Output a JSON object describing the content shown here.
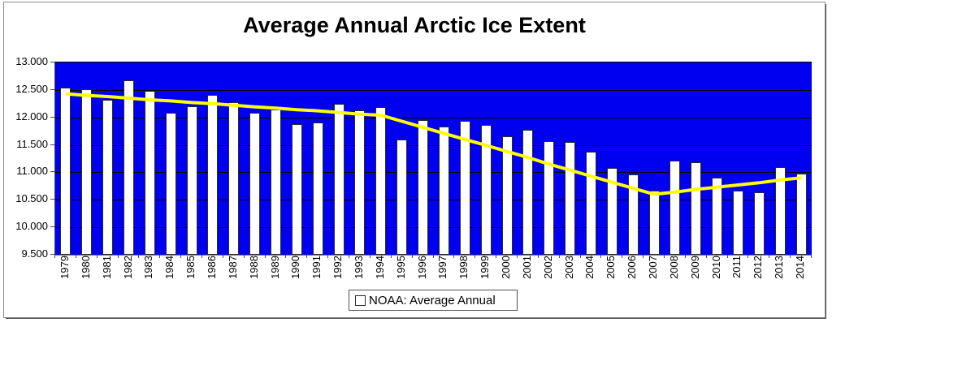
{
  "title": "Average Annual Arctic Ice Extent",
  "legend": {
    "marker_icon": "white-square-icon",
    "label": "NOAA: Average Annual"
  },
  "y_axis": {
    "tick_labels": [
      "13.000",
      "12.500",
      "12.000",
      "11.500",
      "11.000",
      "10.500",
      "10.000",
      "9.500"
    ],
    "min": 9.5,
    "max": 13.0,
    "step": 0.5
  },
  "colors": {
    "plot_background": "#0000F0",
    "bar_fill": "#FFFFFF",
    "bar_border": "#2B2B2B",
    "trend_line": "#FFFF00",
    "gridline": "#000000",
    "title_text": "#000000"
  },
  "chart_data": {
    "type": "bar",
    "title": "Average Annual Arctic Ice Extent",
    "xlabel": "",
    "ylabel": "",
    "ylim": [
      9.5,
      13.0
    ],
    "ytick_step": 0.5,
    "grid": true,
    "plot_bg": "#0000F0",
    "legend_position": "bottom",
    "categories": [
      "1979",
      "1980",
      "1981",
      "1982",
      "1983",
      "1984",
      "1985",
      "1986",
      "1987",
      "1988",
      "1989",
      "1990",
      "1991",
      "1992",
      "1993",
      "1994",
      "1995",
      "1996",
      "1997",
      "1998",
      "1999",
      "2000",
      "2001",
      "2002",
      "2003",
      "2004",
      "2005",
      "2006",
      "2007",
      "2008",
      "2009",
      "2010",
      "2011",
      "2012",
      "2013",
      "2014"
    ],
    "series": [
      {
        "name": "NOAA: Average Annual",
        "kind": "bar",
        "color": "#FFFFFF",
        "values": [
          12.54,
          12.51,
          12.32,
          12.67,
          12.49,
          12.09,
          12.2,
          12.41,
          12.28,
          12.08,
          12.14,
          11.88,
          11.91,
          12.24,
          12.13,
          12.19,
          11.59,
          11.95,
          11.83,
          11.94,
          11.87,
          11.65,
          11.78,
          11.57,
          11.55,
          11.37,
          11.08,
          10.96,
          10.66,
          11.22,
          11.18,
          10.91,
          10.66,
          10.64,
          11.1,
          10.97
        ]
      },
      {
        "name": "trend",
        "kind": "line",
        "color": "#FFFF00",
        "values": [
          12.43,
          12.4,
          12.38,
          12.35,
          12.32,
          12.3,
          12.27,
          12.25,
          12.22,
          12.19,
          12.17,
          12.14,
          12.12,
          12.09,
          12.06,
          12.04,
          11.93,
          11.82,
          11.71,
          11.6,
          11.49,
          11.38,
          11.27,
          11.15,
          11.04,
          10.93,
          10.82,
          10.71,
          10.6,
          10.64,
          10.69,
          10.73,
          10.77,
          10.81,
          10.86,
          10.9
        ]
      }
    ]
  }
}
